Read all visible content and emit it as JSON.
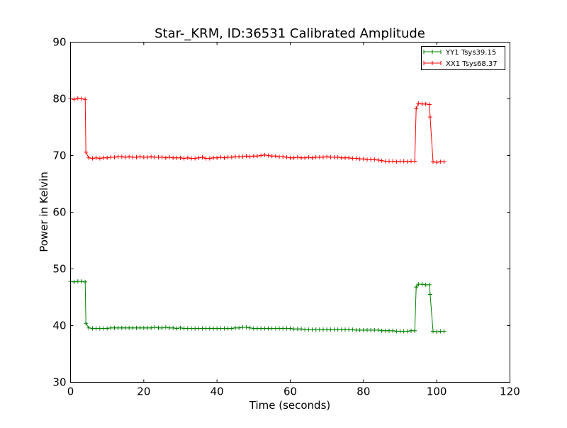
{
  "chart_data": {
    "type": "line",
    "title": "Star-_KRM, ID:36531 Calibrated Amplitude",
    "xlabel": "Time (seconds)",
    "ylabel": "Power in Kelvin",
    "xlim": [
      0,
      120
    ],
    "ylim": [
      30,
      90
    ],
    "xticks": [
      "0",
      "20",
      "40",
      "60",
      "80",
      "100",
      "120"
    ],
    "yticks": [
      "30",
      "40",
      "50",
      "60",
      "70",
      "80",
      "90"
    ],
    "grid": false,
    "legend_position": "top-right",
    "x": [
      0,
      1,
      2,
      3,
      4,
      4.2,
      5,
      6,
      7,
      8,
      9,
      10,
      11,
      12,
      13,
      14,
      15,
      16,
      17,
      18,
      19,
      20,
      21,
      22,
      23,
      24,
      25,
      26,
      27,
      28,
      29,
      30,
      31,
      32,
      33,
      34,
      35,
      36,
      37,
      38,
      39,
      40,
      41,
      42,
      43,
      44,
      45,
      46,
      47,
      48,
      49,
      50,
      51,
      52,
      53,
      54,
      55,
      56,
      57,
      58,
      59,
      60,
      61,
      62,
      63,
      64,
      65,
      66,
      67,
      68,
      69,
      70,
      71,
      72,
      73,
      74,
      75,
      76,
      77,
      78,
      79,
      80,
      81,
      82,
      83,
      84,
      85,
      86,
      87,
      88,
      89,
      90,
      91,
      92,
      93,
      94,
      94.4,
      95,
      96,
      97,
      98,
      98.2,
      99,
      100,
      101,
      102
    ],
    "series": [
      {
        "name": "YY1 Tsys39.15",
        "color": "#008000",
        "values": [
          47.8,
          47.7,
          47.8,
          47.8,
          47.7,
          40.4,
          39.6,
          39.5,
          39.5,
          39.5,
          39.5,
          39.5,
          39.6,
          39.6,
          39.6,
          39.6,
          39.6,
          39.6,
          39.6,
          39.6,
          39.6,
          39.6,
          39.6,
          39.6,
          39.7,
          39.6,
          39.6,
          39.7,
          39.6,
          39.6,
          39.5,
          39.6,
          39.5,
          39.5,
          39.5,
          39.5,
          39.5,
          39.5,
          39.5,
          39.5,
          39.5,
          39.5,
          39.5,
          39.5,
          39.5,
          39.5,
          39.6,
          39.6,
          39.7,
          39.7,
          39.6,
          39.5,
          39.5,
          39.5,
          39.5,
          39.5,
          39.5,
          39.5,
          39.5,
          39.5,
          39.5,
          39.5,
          39.4,
          39.4,
          39.4,
          39.3,
          39.3,
          39.3,
          39.3,
          39.3,
          39.3,
          39.3,
          39.3,
          39.3,
          39.3,
          39.3,
          39.3,
          39.3,
          39.3,
          39.2,
          39.2,
          39.2,
          39.2,
          39.2,
          39.2,
          39.2,
          39.1,
          39.1,
          39.1,
          39.1,
          39.0,
          39.0,
          39.0,
          39.0,
          39.1,
          39.1,
          46.8,
          47.3,
          47.3,
          47.2,
          47.2,
          45.5,
          39.0,
          38.9,
          39.0,
          39.0
        ]
      },
      {
        "name": "XX1 Tsys68.37",
        "color": "#ff0000",
        "values": [
          80.0,
          79.9,
          80.1,
          80.0,
          79.9,
          70.6,
          69.6,
          69.5,
          69.6,
          69.5,
          69.6,
          69.6,
          69.7,
          69.7,
          69.8,
          69.8,
          69.7,
          69.8,
          69.7,
          69.7,
          69.8,
          69.7,
          69.7,
          69.8,
          69.7,
          69.7,
          69.7,
          69.6,
          69.7,
          69.6,
          69.6,
          69.6,
          69.5,
          69.6,
          69.5,
          69.5,
          69.6,
          69.7,
          69.5,
          69.5,
          69.6,
          69.6,
          69.7,
          69.6,
          69.7,
          69.7,
          69.8,
          69.8,
          69.8,
          69.9,
          69.8,
          69.9,
          69.9,
          70.0,
          70.1,
          70.0,
          69.9,
          69.9,
          69.8,
          69.8,
          69.7,
          69.6,
          69.6,
          69.7,
          69.6,
          69.6,
          69.7,
          69.6,
          69.7,
          69.7,
          69.7,
          69.8,
          69.7,
          69.7,
          69.7,
          69.6,
          69.6,
          69.6,
          69.5,
          69.5,
          69.4,
          69.4,
          69.3,
          69.3,
          69.3,
          69.2,
          69.1,
          69.0,
          69.0,
          69.0,
          68.9,
          69.0,
          69.0,
          68.9,
          69.0,
          69.0,
          78.3,
          79.2,
          79.1,
          79.1,
          79.0,
          76.8,
          68.9,
          68.8,
          68.9,
          68.9
        ]
      }
    ]
  }
}
